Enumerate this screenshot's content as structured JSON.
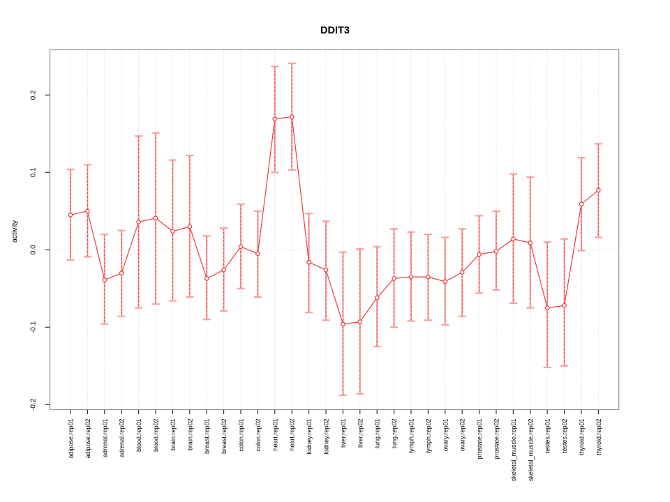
{
  "chart_data": {
    "type": "line",
    "title": "DDIT3",
    "xlabel": "",
    "ylabel": "activity",
    "ylim": [
      -0.206,
      0.258
    ],
    "y_ticks": [
      0.2,
      0.1,
      0.0,
      -0.1,
      -0.2
    ],
    "y_tick_labels": [
      "0.2",
      "0.1",
      "0.0",
      "-0.1",
      "-0.2"
    ],
    "grid": "vertical-dotted-gridline-per-category-plus-dotted-zero-line",
    "legend_position": "none",
    "point_marker": "open-circle",
    "categories": [
      "adipose.rep01",
      "adipose.rep02",
      "adrenal.rep01",
      "adrenal.rep02",
      "blood.rep01",
      "blood.rep02",
      "brain.rep01",
      "brain.rep02",
      "breast.rep01",
      "breast.rep02",
      "colon.rep01",
      "colon.rep02",
      "heart.rep01",
      "heart.rep02",
      "kidney.rep01",
      "kidney.rep02",
      "liver.rep01",
      "liver.rep02",
      "lung.rep01",
      "lung.rep02",
      "lymph.rep01",
      "lymph.rep02",
      "ovary.rep01",
      "ovary.rep02",
      "prostate.rep01",
      "prostate.rep02",
      "skeletal_muscle.rep01",
      "skeletal_muscle.rep02",
      "testes.rep01",
      "testes.rep02",
      "thyroid.rep01",
      "thyroid.rep02"
    ],
    "series": [
      {
        "name": "activity",
        "values": [
          0.045,
          0.05,
          -0.039,
          -0.03,
          0.036,
          0.041,
          0.024,
          0.03,
          -0.037,
          -0.026,
          0.004,
          -0.005,
          0.169,
          0.172,
          -0.016,
          -0.026,
          -0.096,
          -0.093,
          -0.062,
          -0.037,
          -0.035,
          -0.035,
          -0.041,
          -0.029,
          -0.006,
          -0.002,
          0.014,
          0.009,
          -0.075,
          -0.072,
          0.059,
          0.077
        ]
      },
      {
        "name": "ci_upper",
        "values": [
          0.104,
          0.11,
          0.02,
          0.025,
          0.147,
          0.151,
          0.116,
          0.122,
          0.018,
          0.028,
          0.059,
          0.05,
          0.237,
          0.241,
          0.047,
          0.037,
          -0.003,
          0.001,
          0.004,
          0.027,
          0.023,
          0.02,
          0.016,
          0.027,
          0.044,
          0.05,
          0.098,
          0.094,
          0.01,
          0.014,
          0.119,
          0.137
        ]
      },
      {
        "name": "ci_lower",
        "values": [
          -0.013,
          -0.009,
          -0.096,
          -0.086,
          -0.075,
          -0.07,
          -0.066,
          -0.061,
          -0.09,
          -0.079,
          -0.05,
          -0.061,
          0.1,
          0.103,
          -0.081,
          -0.091,
          -0.188,
          -0.186,
          -0.125,
          -0.1,
          -0.092,
          -0.091,
          -0.097,
          -0.086,
          -0.056,
          -0.052,
          -0.069,
          -0.075,
          -0.152,
          -0.15,
          -0.001,
          0.016
        ]
      }
    ],
    "colors": {
      "line": "#ee3a3a",
      "error_bar": "#f9a0a0",
      "grid": "#d8d8d8",
      "box": "#999999",
      "tick": "#333333",
      "text": "#000000",
      "background": "#ffffff"
    }
  }
}
